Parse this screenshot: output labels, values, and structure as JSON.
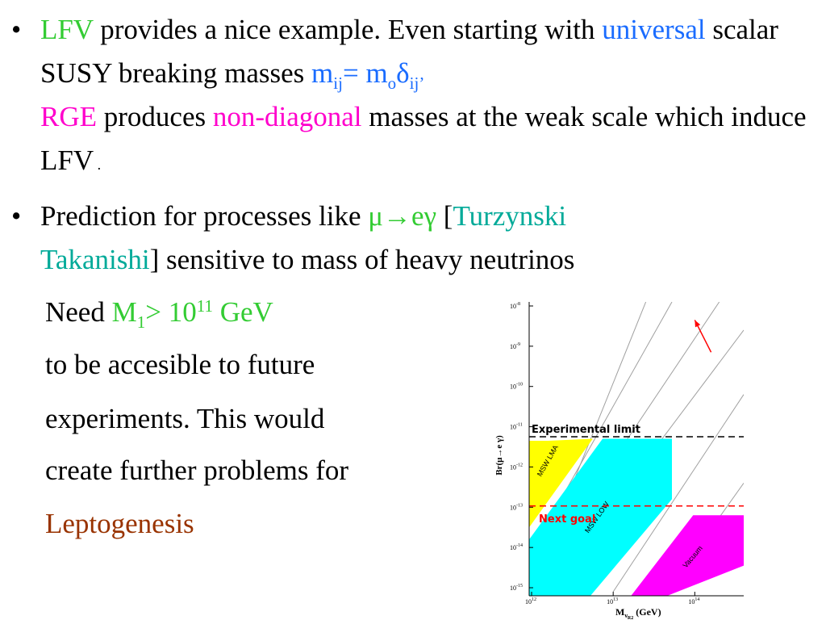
{
  "colors": {
    "green": "#33cc33",
    "blue": "#1a6cff",
    "magenta": "#ff00cc",
    "teal": "#00aa99",
    "brown": "#993300",
    "band_yellow": "#ffff00",
    "band_cyan": "#00ffff",
    "band_magenta": "#ff00ff",
    "arrow_red": "#ff0000",
    "line_gray": "#a0a0a0"
  },
  "bullet_symbol": "•",
  "bullet1": {
    "lfv": "LFV",
    "t1": " provides a nice example. Even starting with ",
    "universal": "universal",
    "t2": " scalar SUSY breaking masses ",
    "m": "m",
    "ij": "ij",
    "eq": "= m",
    "o": "o",
    "delta": "δ",
    "ij2": "ij",
    "comma": "’",
    "rge": "RGE",
    "t3": " produces ",
    "nondiag": "non-diagonal",
    "t4": " masses at the weak scale which induce LFV",
    "period": " ."
  },
  "bullet2": {
    "t1": "Prediction for processes like ",
    "process": "μ→eγ",
    "bracket_open": " [",
    "author1": "Turzynski",
    "space": " ",
    "author2": "Takanishi",
    "t2": "] sensitive to mass of heavy neutrinos"
  },
  "continuation": {
    "need": "Need ",
    "M": "M",
    "sub1": "1",
    "gt": "> 10",
    "exp": "11",
    "gev": " GeV",
    "line2": "to be accesible to future",
    "line3": "experiments. This  would",
    "line4": "create further problems for",
    "lepto": "Leptogenesis"
  },
  "chart_data": {
    "type": "area",
    "xlabel": "M",
    "xlabel_sub": "ν",
    "xlabel_subsub": "R2",
    "xlabel_unit": " (GeV)",
    "ylabel": "Br(μ→e γ)",
    "x_ticks": [
      {
        "base": "10",
        "exp": "12"
      },
      {
        "base": "10",
        "exp": "13"
      },
      {
        "base": "10",
        "exp": "14"
      }
    ],
    "y_ticks": [
      {
        "base": "10",
        "exp": "-8"
      },
      {
        "base": "10",
        "exp": "-9"
      },
      {
        "base": "10",
        "exp": "-10"
      },
      {
        "base": "10",
        "exp": "-11"
      },
      {
        "base": "10",
        "exp": "-12"
      },
      {
        "base": "10",
        "exp": "-13"
      },
      {
        "base": "10",
        "exp": "-14"
      },
      {
        "base": "10",
        "exp": "-15"
      }
    ],
    "x_log_range": [
      11.97,
      14.6
    ],
    "y_log_range": [
      -15.2,
      -7.9
    ],
    "bands": [
      {
        "name": "MSW LMA",
        "color": "#ffff00",
        "x": [
          11.97,
          12.2,
          12.75,
          11.97
        ],
        "y": [
          -11.35,
          -11.35,
          -11.3,
          -13.5
        ]
      },
      {
        "name": "MSW LOW",
        "color": "#00ffff",
        "x": [
          11.97,
          12.87,
          13.72,
          13.72,
          12.7,
          11.97
        ],
        "y": [
          -13.8,
          -11.3,
          -11.3,
          -12.8,
          -15.25,
          -15.25
        ]
      },
      {
        "name": "Vacuum",
        "color": "#ff00ff",
        "x": [
          13.2,
          13.98,
          14.6,
          14.6,
          13.6
        ],
        "y": [
          -15.25,
          -13.2,
          -13.2,
          -14.45,
          -15.25
        ]
      }
    ],
    "guide_lines": [
      {
        "x": [
          11.97,
          13.4
        ],
        "y": [
          -15.1,
          -7.9
        ]
      },
      {
        "x": [
          11.97,
          13.72
        ],
        "y": [
          -14.2,
          -7.9
        ]
      },
      {
        "x": [
          12.25,
          14.3
        ],
        "y": [
          -14.1,
          -7.9
        ]
      },
      {
        "x": [
          12.6,
          14.6
        ],
        "y": [
          -14.0,
          -8.6
        ]
      },
      {
        "x": [
          13.0,
          14.6
        ],
        "y": [
          -15.1,
          -10.2
        ]
      },
      {
        "x": [
          13.6,
          14.6
        ],
        "y": [
          -15.25,
          -12.4
        ]
      }
    ],
    "experimental_limit": {
      "y": -11.25,
      "label": "Experimental limit"
    },
    "next_goal": {
      "y": -12.97,
      "label": "Next goal"
    },
    "arrow": {
      "from": [
        14.2,
        -9.15
      ],
      "to": [
        14.0,
        -8.35
      ]
    }
  }
}
